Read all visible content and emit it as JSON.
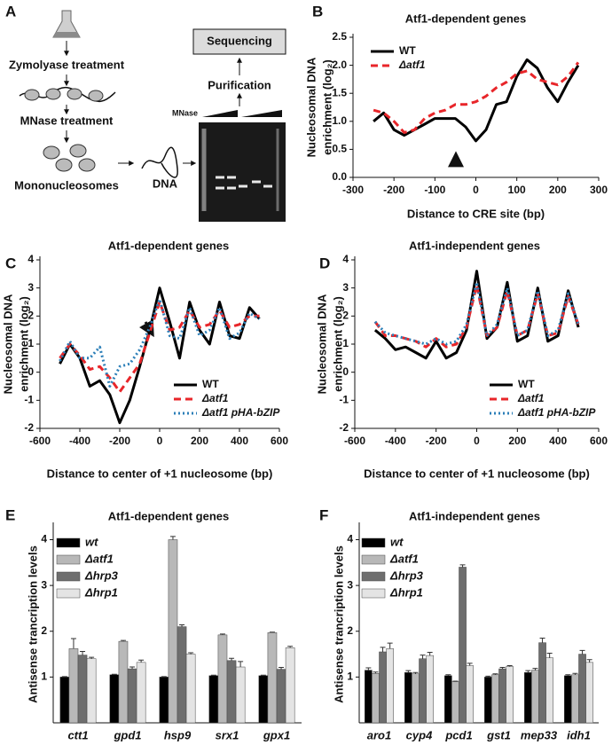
{
  "panels": [
    "A",
    "B",
    "C",
    "D",
    "E",
    "F"
  ],
  "diagram": {
    "zymolyase": "Zymolyase treatment",
    "mnase_treatment": "MNase treatment",
    "mononucleosomes": "Mononucleosomes",
    "dna": "DNA",
    "purification": "Purification",
    "sequencing": "Sequencing",
    "mnase": "MNase"
  },
  "chart_data": [
    {
      "type": "line",
      "title": "Atf1-dependent genes",
      "xlabel": "Distance to CRE site (bp)",
      "ylabel": [
        "Nucleosomal DNA",
        "enrichment (log₂)"
      ],
      "x": [
        -250,
        -225,
        -200,
        -175,
        -150,
        -125,
        -100,
        -75,
        -50,
        -25,
        0,
        25,
        50,
        75,
        100,
        125,
        150,
        175,
        200,
        225,
        250
      ],
      "series": [
        {
          "name": "WT",
          "color": "#000000",
          "style": "solid",
          "values": [
            1.0,
            1.15,
            0.85,
            0.75,
            0.85,
            0.95,
            1.05,
            1.05,
            1.05,
            0.9,
            0.65,
            0.85,
            1.3,
            1.35,
            1.8,
            2.1,
            1.95,
            1.6,
            1.35,
            1.7,
            2.0
          ]
        },
        {
          "name": "Δatf1",
          "color": "#e8262a",
          "style": "dashed",
          "values": [
            1.2,
            1.15,
            1.0,
            0.8,
            0.85,
            1.05,
            1.15,
            1.2,
            1.3,
            1.3,
            1.35,
            1.45,
            1.6,
            1.7,
            1.85,
            1.9,
            1.75,
            1.7,
            1.65,
            1.8,
            2.05
          ]
        }
      ],
      "xlim": [
        -300,
        300
      ],
      "xticks": [
        -300,
        -200,
        -100,
        0,
        100,
        200,
        300
      ],
      "ylim": [
        0,
        2.5
      ],
      "yticks": [
        {
          "value": 0,
          "label": "0.0"
        },
        {
          "value": 0.5,
          "label": "0.5"
        },
        {
          "value": 1,
          "label": "1.0"
        },
        {
          "value": 1.5,
          "label": "1.5"
        },
        {
          "value": 2,
          "label": "2.0"
        },
        {
          "value": 2.5,
          "label": "2.5"
        }
      ]
    },
    {
      "type": "line",
      "title": "Atf1-dependent genes",
      "xlabel": "Distance to center of +1 nucleosome (bp)",
      "ylabel": [
        "Nucleosomal DNA",
        "enrichment (log₂)"
      ],
      "x": [
        -500,
        -450,
        -400,
        -350,
        -300,
        -250,
        -200,
        -150,
        -100,
        -50,
        0,
        50,
        100,
        150,
        200,
        250,
        300,
        350,
        400,
        450,
        500
      ],
      "series": [
        {
          "name": "WT",
          "color": "#000000",
          "style": "solid",
          "values": [
            0.3,
            1.0,
            0.5,
            -0.5,
            -0.3,
            -0.8,
            -1.8,
            -1.0,
            0.2,
            1.5,
            3.0,
            1.8,
            0.5,
            2.5,
            1.5,
            1.0,
            2.5,
            1.3,
            1.2,
            2.3,
            1.9
          ]
        },
        {
          "name": "Δatf1",
          "color": "#e8262a",
          "style": "dashed",
          "values": [
            0.5,
            1.0,
            0.6,
            0.1,
            0.2,
            -0.2,
            -0.7,
            -0.2,
            0.3,
            1.4,
            2.5,
            1.5,
            1.6,
            2.2,
            1.6,
            1.7,
            2.2,
            1.6,
            1.7,
            2.0,
            2.0
          ]
        },
        {
          "name": "Δatf1 pHA-bZIP",
          "color": "#2c7fb8",
          "style": "dotted",
          "values": [
            0.4,
            1.1,
            0.5,
            0.5,
            0.9,
            -0.5,
            0.2,
            0.3,
            0.8,
            1.6,
            2.6,
            1.3,
            1.2,
            2.3,
            1.3,
            1.5,
            2.3,
            1.2,
            1.4,
            2.1,
            1.9
          ]
        }
      ],
      "xlim": [
        -600,
        600
      ],
      "xticks": [
        -600,
        -400,
        -200,
        0,
        200,
        400,
        600
      ],
      "ylim": [
        -2,
        4
      ],
      "yticks": [
        -2,
        -1,
        0,
        1,
        2,
        3,
        4
      ]
    },
    {
      "type": "line",
      "title": "Atf1-independent genes",
      "xlabel": "Distance to center of +1 nucleosome (bp)",
      "ylabel": [
        "Nucleosomal DNA",
        "enrichment (log₂)"
      ],
      "x": [
        -500,
        -450,
        -400,
        -350,
        -300,
        -250,
        -200,
        -150,
        -100,
        -50,
        0,
        50,
        100,
        150,
        200,
        250,
        300,
        350,
        400,
        450,
        500
      ],
      "series": [
        {
          "name": "WT",
          "color": "#000000",
          "style": "solid",
          "values": [
            1.5,
            1.2,
            0.8,
            0.9,
            0.7,
            0.5,
            1.1,
            0.5,
            0.7,
            1.5,
            3.6,
            1.2,
            1.6,
            3.2,
            1.1,
            1.3,
            3.0,
            1.1,
            1.3,
            2.9,
            1.6
          ]
        },
        {
          "name": "Δatf1",
          "color": "#e8262a",
          "style": "dashed",
          "values": [
            1.8,
            1.3,
            1.3,
            1.2,
            1.1,
            0.9,
            1.2,
            0.9,
            1.0,
            1.6,
            3.1,
            1.3,
            1.6,
            2.9,
            1.3,
            1.5,
            2.8,
            1.3,
            1.4,
            2.7,
            1.7
          ]
        },
        {
          "name": "Δatf1 pHA-bZIP",
          "color": "#2c7fb8",
          "style": "dotted",
          "values": [
            1.8,
            1.4,
            1.3,
            1.2,
            1.1,
            1.0,
            1.2,
            1.0,
            1.1,
            1.7,
            3.2,
            1.3,
            1.7,
            3.0,
            1.3,
            1.5,
            2.9,
            1.3,
            1.5,
            2.8,
            1.7
          ]
        }
      ],
      "xlim": [
        -600,
        600
      ],
      "xticks": [
        -600,
        -400,
        -200,
        0,
        200,
        400,
        600
      ],
      "ylim": [
        -2,
        4
      ],
      "yticks": [
        -2,
        -1,
        0,
        1,
        2,
        3,
        4
      ]
    },
    {
      "type": "bar",
      "title": "Atf1-dependent genes",
      "ylabel": [
        "Antisense trancription levels"
      ],
      "categories": [
        "ctt1",
        "gpd1",
        "hsp9",
        "srx1",
        "gpx1"
      ],
      "series": [
        {
          "name": "wt",
          "color": "#000000",
          "values": [
            1.0,
            1.05,
            1.0,
            1.03,
            1.03
          ],
          "errors": [
            0.01,
            0.01,
            0.01,
            0.01,
            0.01
          ]
        },
        {
          "name": "Δatf1",
          "color": "#b8b8b8",
          "values": [
            1.62,
            1.78,
            4.0,
            1.92,
            1.97
          ],
          "errors": [
            0.22,
            0.02,
            0.07,
            0.02,
            0.01
          ]
        },
        {
          "name": "Δhrp3",
          "color": "#6e6e6e",
          "values": [
            1.48,
            1.18,
            2.1,
            1.36,
            1.17
          ],
          "errors": [
            0.08,
            0.04,
            0.04,
            0.05,
            0.04
          ]
        },
        {
          "name": "Δhrp1",
          "color": "#e4e4e4",
          "values": [
            1.4,
            1.32,
            1.5,
            1.22,
            1.64
          ],
          "errors": [
            0.03,
            0.05,
            0.03,
            0.12,
            0.03
          ]
        }
      ],
      "ylim": [
        0,
        4.3
      ],
      "yticks": [
        1,
        2,
        3,
        4
      ]
    },
    {
      "type": "bar",
      "title": "Atf1-independent genes",
      "ylabel": [
        "Antisense trancription levels"
      ],
      "categories": [
        "aro1",
        "cyp4",
        "pcd1",
        "gst1",
        "mep33",
        "idh1"
      ],
      "series": [
        {
          "name": "wt",
          "color": "#000000",
          "values": [
            1.15,
            1.1,
            1.03,
            1.0,
            1.1,
            1.03
          ],
          "errors": [
            0.05,
            0.04,
            0.02,
            0.02,
            0.04,
            0.02
          ]
        },
        {
          "name": "Δatf1",
          "color": "#b8b8b8",
          "values": [
            1.08,
            1.07,
            0.9,
            1.05,
            1.15,
            1.05
          ],
          "errors": [
            0.03,
            0.03,
            0.01,
            0.02,
            0.04,
            0.03
          ]
        },
        {
          "name": "Δhrp3",
          "color": "#6e6e6e",
          "values": [
            1.55,
            1.4,
            3.4,
            1.18,
            1.75,
            1.5
          ],
          "errors": [
            0.1,
            0.08,
            0.05,
            0.03,
            0.1,
            0.08
          ]
        },
        {
          "name": "Δhrp1",
          "color": "#e4e4e4",
          "values": [
            1.62,
            1.47,
            1.25,
            1.23,
            1.42,
            1.32
          ],
          "errors": [
            0.12,
            0.07,
            0.05,
            0.02,
            0.1,
            0.06
          ]
        }
      ],
      "ylim": [
        0,
        4.3
      ],
      "yticks": [
        1,
        2,
        3,
        4
      ]
    }
  ]
}
